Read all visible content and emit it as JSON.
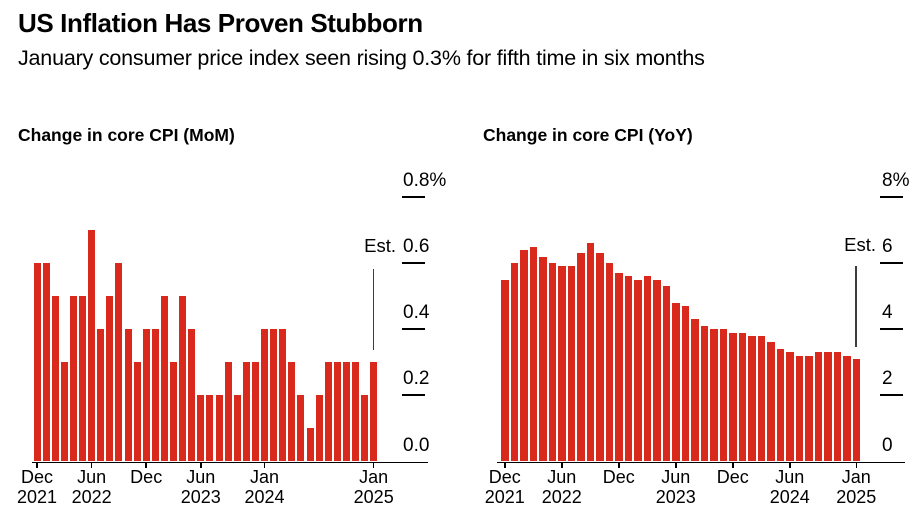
{
  "header": {
    "title": "US Inflation Has Proven Stubborn",
    "subtitle": "January consumer price index seen rising 0.3% for fifth time in six months"
  },
  "colors": {
    "bar": "#d9291d",
    "text": "#000000",
    "axis": "#000000",
    "est_line": "#3d3d3d",
    "background": "#ffffff"
  },
  "chart_data": [
    {
      "type": "bar",
      "title": "Change in core CPI (MoM)",
      "est_label": "Est.",
      "est_category": "Jan 2025",
      "ylim": [
        0,
        0.8
      ],
      "grid": "off",
      "legend": "none",
      "y_ticks": [
        {
          "value": 0.8,
          "label": "0.8%"
        },
        {
          "value": 0.6,
          "label": "0.6"
        },
        {
          "value": 0.4,
          "label": "0.4"
        },
        {
          "value": 0.2,
          "label": "0.2"
        },
        {
          "value": 0.0,
          "label": "0.0"
        }
      ],
      "x_ticks": [
        {
          "month_index": 0,
          "line1": "Dec",
          "line2": "2021"
        },
        {
          "month_index": 6,
          "line1": "Jun",
          "line2": "2022"
        },
        {
          "month_index": 12,
          "line1": "Dec",
          "line2": ""
        },
        {
          "month_index": 18,
          "line1": "Jun",
          "line2": "2023"
        },
        {
          "month_index": 25,
          "line1": "Jan",
          "line2": "2024"
        },
        {
          "month_index": 37,
          "line1": "Jan",
          "line2": "2025"
        }
      ],
      "categories": [
        "Dec 2021",
        "Jan 2022",
        "Feb 2022",
        "Mar 2022",
        "Apr 2022",
        "May 2022",
        "Jun 2022",
        "Jul 2022",
        "Aug 2022",
        "Sep 2022",
        "Oct 2022",
        "Nov 2022",
        "Dec 2022",
        "Jan 2023",
        "Feb 2023",
        "Mar 2023",
        "Apr 2023",
        "May 2023",
        "Jun 2023",
        "Jul 2023",
        "Aug 2023",
        "Sep 2023",
        "Oct 2023",
        "Nov 2023",
        "Dec 2023",
        "Jan 2024",
        "Feb 2024",
        "Mar 2024",
        "Apr 2024",
        "May 2024",
        "Jun 2024",
        "Jul 2024",
        "Aug 2024",
        "Sep 2024",
        "Oct 2024",
        "Nov 2024",
        "Dec 2024",
        "Jan 2025"
      ],
      "values": [
        0.6,
        0.6,
        0.5,
        0.3,
        0.5,
        0.5,
        0.7,
        0.4,
        0.5,
        0.6,
        0.4,
        0.3,
        0.4,
        0.4,
        0.5,
        0.3,
        0.5,
        0.4,
        0.2,
        0.2,
        0.2,
        0.3,
        0.2,
        0.3,
        0.3,
        0.4,
        0.4,
        0.4,
        0.3,
        0.2,
        0.1,
        0.2,
        0.3,
        0.3,
        0.3,
        0.3,
        0.2,
        0.3
      ]
    },
    {
      "type": "bar",
      "title": "Change in core CPI (YoY)",
      "est_label": "Est.",
      "est_category": "Jan 2025",
      "ylim": [
        0,
        8
      ],
      "grid": "off",
      "legend": "none",
      "y_ticks": [
        {
          "value": 8,
          "label": "8%"
        },
        {
          "value": 6,
          "label": "6"
        },
        {
          "value": 4,
          "label": "4"
        },
        {
          "value": 2,
          "label": "2"
        },
        {
          "value": 0,
          "label": "0"
        }
      ],
      "x_ticks": [
        {
          "month_index": 0,
          "line1": "Dec",
          "line2": "2021"
        },
        {
          "month_index": 6,
          "line1": "Jun",
          "line2": "2022"
        },
        {
          "month_index": 12,
          "line1": "Dec",
          "line2": ""
        },
        {
          "month_index": 18,
          "line1": "Jun",
          "line2": "2023"
        },
        {
          "month_index": 24,
          "line1": "Dec",
          "line2": ""
        },
        {
          "month_index": 30,
          "line1": "Jun",
          "line2": "2024"
        },
        {
          "month_index": 37,
          "line1": "Jan",
          "line2": "2025"
        }
      ],
      "categories": [
        "Dec 2021",
        "Jan 2022",
        "Feb 2022",
        "Mar 2022",
        "Apr 2022",
        "May 2022",
        "Jun 2022",
        "Jul 2022",
        "Aug 2022",
        "Sep 2022",
        "Oct 2022",
        "Nov 2022",
        "Dec 2022",
        "Jan 2023",
        "Feb 2023",
        "Mar 2023",
        "Apr 2023",
        "May 2023",
        "Jun 2023",
        "Jul 2023",
        "Aug 2023",
        "Sep 2023",
        "Oct 2023",
        "Nov 2023",
        "Dec 2023",
        "Jan 2024",
        "Feb 2024",
        "Mar 2024",
        "Apr 2024",
        "May 2024",
        "Jun 2024",
        "Jul 2024",
        "Aug 2024",
        "Sep 2024",
        "Oct 2024",
        "Nov 2024",
        "Dec 2024",
        "Jan 2025"
      ],
      "values": [
        5.5,
        6.0,
        6.4,
        6.5,
        6.2,
        6.0,
        5.9,
        5.9,
        6.3,
        6.6,
        6.3,
        6.0,
        5.7,
        5.6,
        5.5,
        5.6,
        5.5,
        5.3,
        4.8,
        4.7,
        4.3,
        4.1,
        4.0,
        4.0,
        3.9,
        3.9,
        3.8,
        3.8,
        3.6,
        3.4,
        3.3,
        3.2,
        3.2,
        3.3,
        3.3,
        3.3,
        3.2,
        3.1
      ]
    }
  ]
}
